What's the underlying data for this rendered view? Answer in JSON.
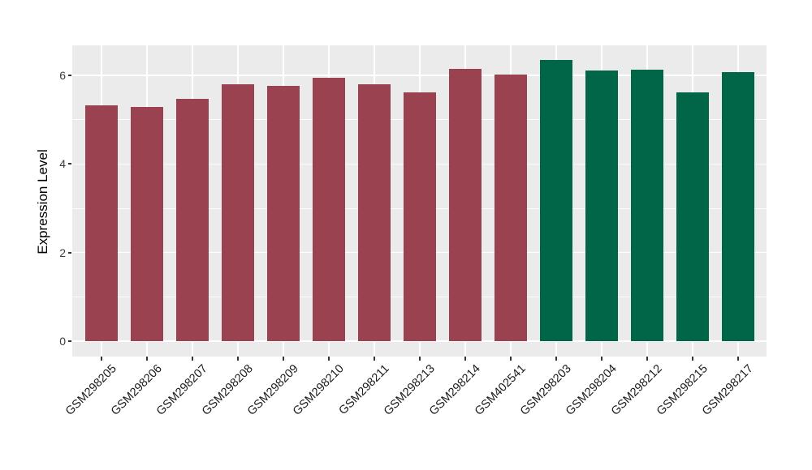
{
  "chart_data": {
    "type": "bar",
    "title": "",
    "xlabel": "",
    "ylabel": "Expression Level",
    "categories": [
      "GSM298205",
      "GSM298206",
      "GSM298207",
      "GSM298208",
      "GSM298209",
      "GSM298210",
      "GSM298211",
      "GSM298213",
      "GSM298214",
      "GSM402541",
      "GSM298203",
      "GSM298204",
      "GSM298212",
      "GSM298215",
      "GSM298217"
    ],
    "values": [
      5.33,
      5.28,
      5.47,
      5.81,
      5.77,
      5.94,
      5.8,
      5.61,
      6.14,
      6.02,
      6.35,
      6.11,
      6.13,
      5.62,
      6.08
    ],
    "bar_colors": [
      "#9A4250",
      "#9A4250",
      "#9A4250",
      "#9A4250",
      "#9A4250",
      "#9A4250",
      "#9A4250",
      "#9A4250",
      "#9A4250",
      "#9A4250",
      "#006647",
      "#006647",
      "#006647",
      "#006647",
      "#006647"
    ],
    "group_colors": {
      "left_group_hex": "#9A4250",
      "right_group_hex": "#006647"
    },
    "yticks": [
      0,
      2,
      4,
      6
    ],
    "ytick_labels": [
      "0",
      "2",
      "4",
      "6"
    ],
    "minor_gridlines": [
      1,
      3,
      5
    ],
    "ylim": [
      -0.35,
      6.68
    ],
    "grid": "on",
    "legend_position": "none",
    "panel_bg": "#EBEBEB",
    "grid_color": "#FFFFFF"
  }
}
